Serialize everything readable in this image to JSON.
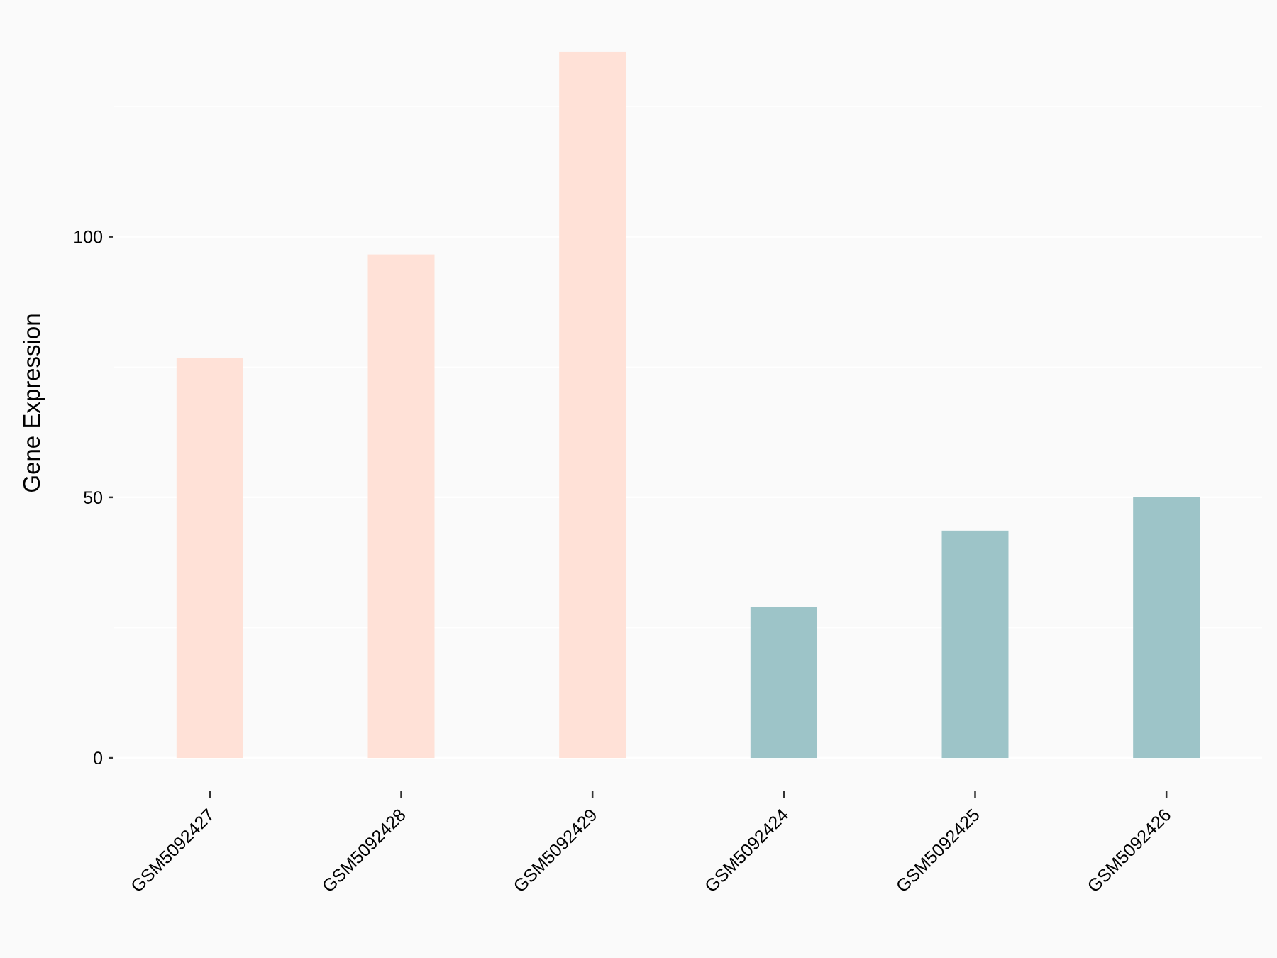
{
  "chart_data": {
    "type": "bar",
    "y_label": "Gene Expression",
    "categories": [
      "GSM5092427",
      "GSM5092428",
      "GSM5092429",
      "GSM5092424",
      "GSM5092425",
      "GSM5092426"
    ],
    "values": [
      76.7,
      96.6,
      135.5,
      28.9,
      43.6,
      50.0
    ],
    "colors": [
      "#FFE1D7",
      "#FFE1D7",
      "#FFE1D7",
      "#9DC4C8",
      "#9DC4C8",
      "#9DC4C8"
    ],
    "ylim": [
      -6.8,
      142.3
    ],
    "yticks": [
      0,
      50,
      100
    ],
    "minor_yticks": [
      25,
      75,
      125
    ],
    "grid": true
  }
}
